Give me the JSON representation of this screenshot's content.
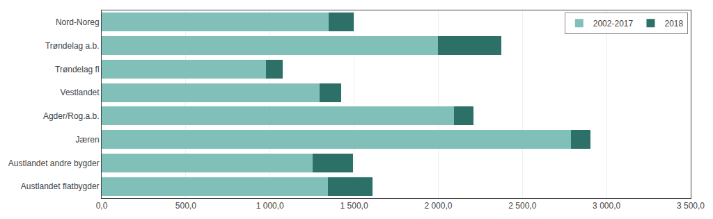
{
  "chart_data": {
    "type": "bar",
    "orientation": "horizontal",
    "stacked": true,
    "categories": [
      "Nord-Noreg",
      "Trøndelag a.b.",
      "Trøndelag fl",
      "Vestlandet",
      "Agder/Rog.a.b.",
      "Jæren",
      "Austlandet andre bygder",
      "Austlandet flatbygder"
    ],
    "series": [
      {
        "name": "2002-2017",
        "color": "#80c0b8",
        "values": [
          1350,
          2000,
          975,
          1295,
          2095,
          2790,
          1255,
          1345
        ]
      },
      {
        "name": "2018",
        "color": "#2d7068",
        "values": [
          148,
          375,
          100,
          130,
          115,
          115,
          240,
          265
        ]
      }
    ],
    "xlim": [
      0,
      3500
    ],
    "xticks": [
      {
        "value": 0,
        "label": "0,0"
      },
      {
        "value": 500,
        "label": "500,0"
      },
      {
        "value": 1000,
        "label": "1 000,0"
      },
      {
        "value": 1500,
        "label": "1 500,0"
      },
      {
        "value": 2000,
        "label": "2 000,0"
      },
      {
        "value": 2500,
        "label": "2 500,0"
      },
      {
        "value": 3000,
        "label": "3 000,0"
      },
      {
        "value": 3500,
        "label": "3 500,0"
      }
    ],
    "grid": true,
    "legend": "upper right"
  }
}
